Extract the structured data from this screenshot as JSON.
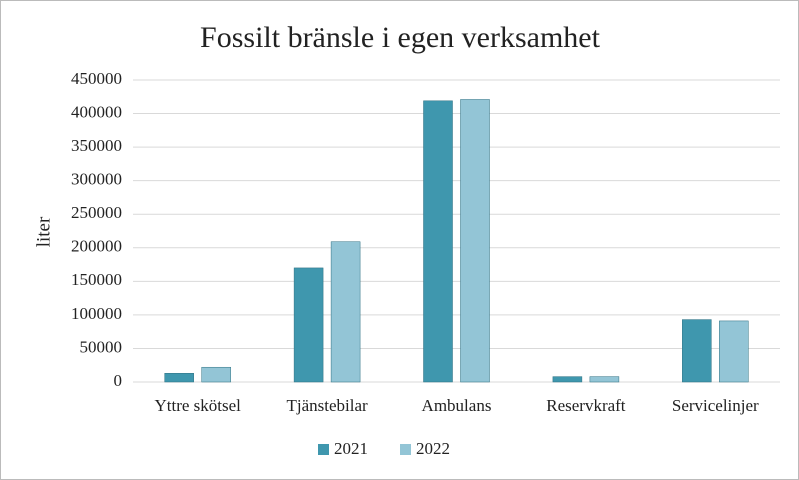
{
  "chart_data": {
    "type": "bar",
    "title": "Fossilt bränsle i egen verksamhet",
    "y_label": "liter",
    "categories": [
      "Yttre skötsel",
      "Tjänstebilar",
      "Ambulans",
      "Reservkraft",
      "Servicelinjer"
    ],
    "series": [
      {
        "name": "2021",
        "color": "#3f97ae",
        "values": [
          13000,
          170000,
          419000,
          8000,
          93000
        ]
      },
      {
        "name": "2022",
        "color": "#93c5d6",
        "values": [
          22000,
          209000,
          421000,
          8000,
          91000
        ]
      }
    ],
    "ylim": [
      0,
      450000
    ],
    "yticks": [
      0,
      50000,
      100000,
      150000,
      200000,
      250000,
      300000,
      350000,
      400000,
      450000
    ],
    "grid": true,
    "legend": "bottom"
  }
}
